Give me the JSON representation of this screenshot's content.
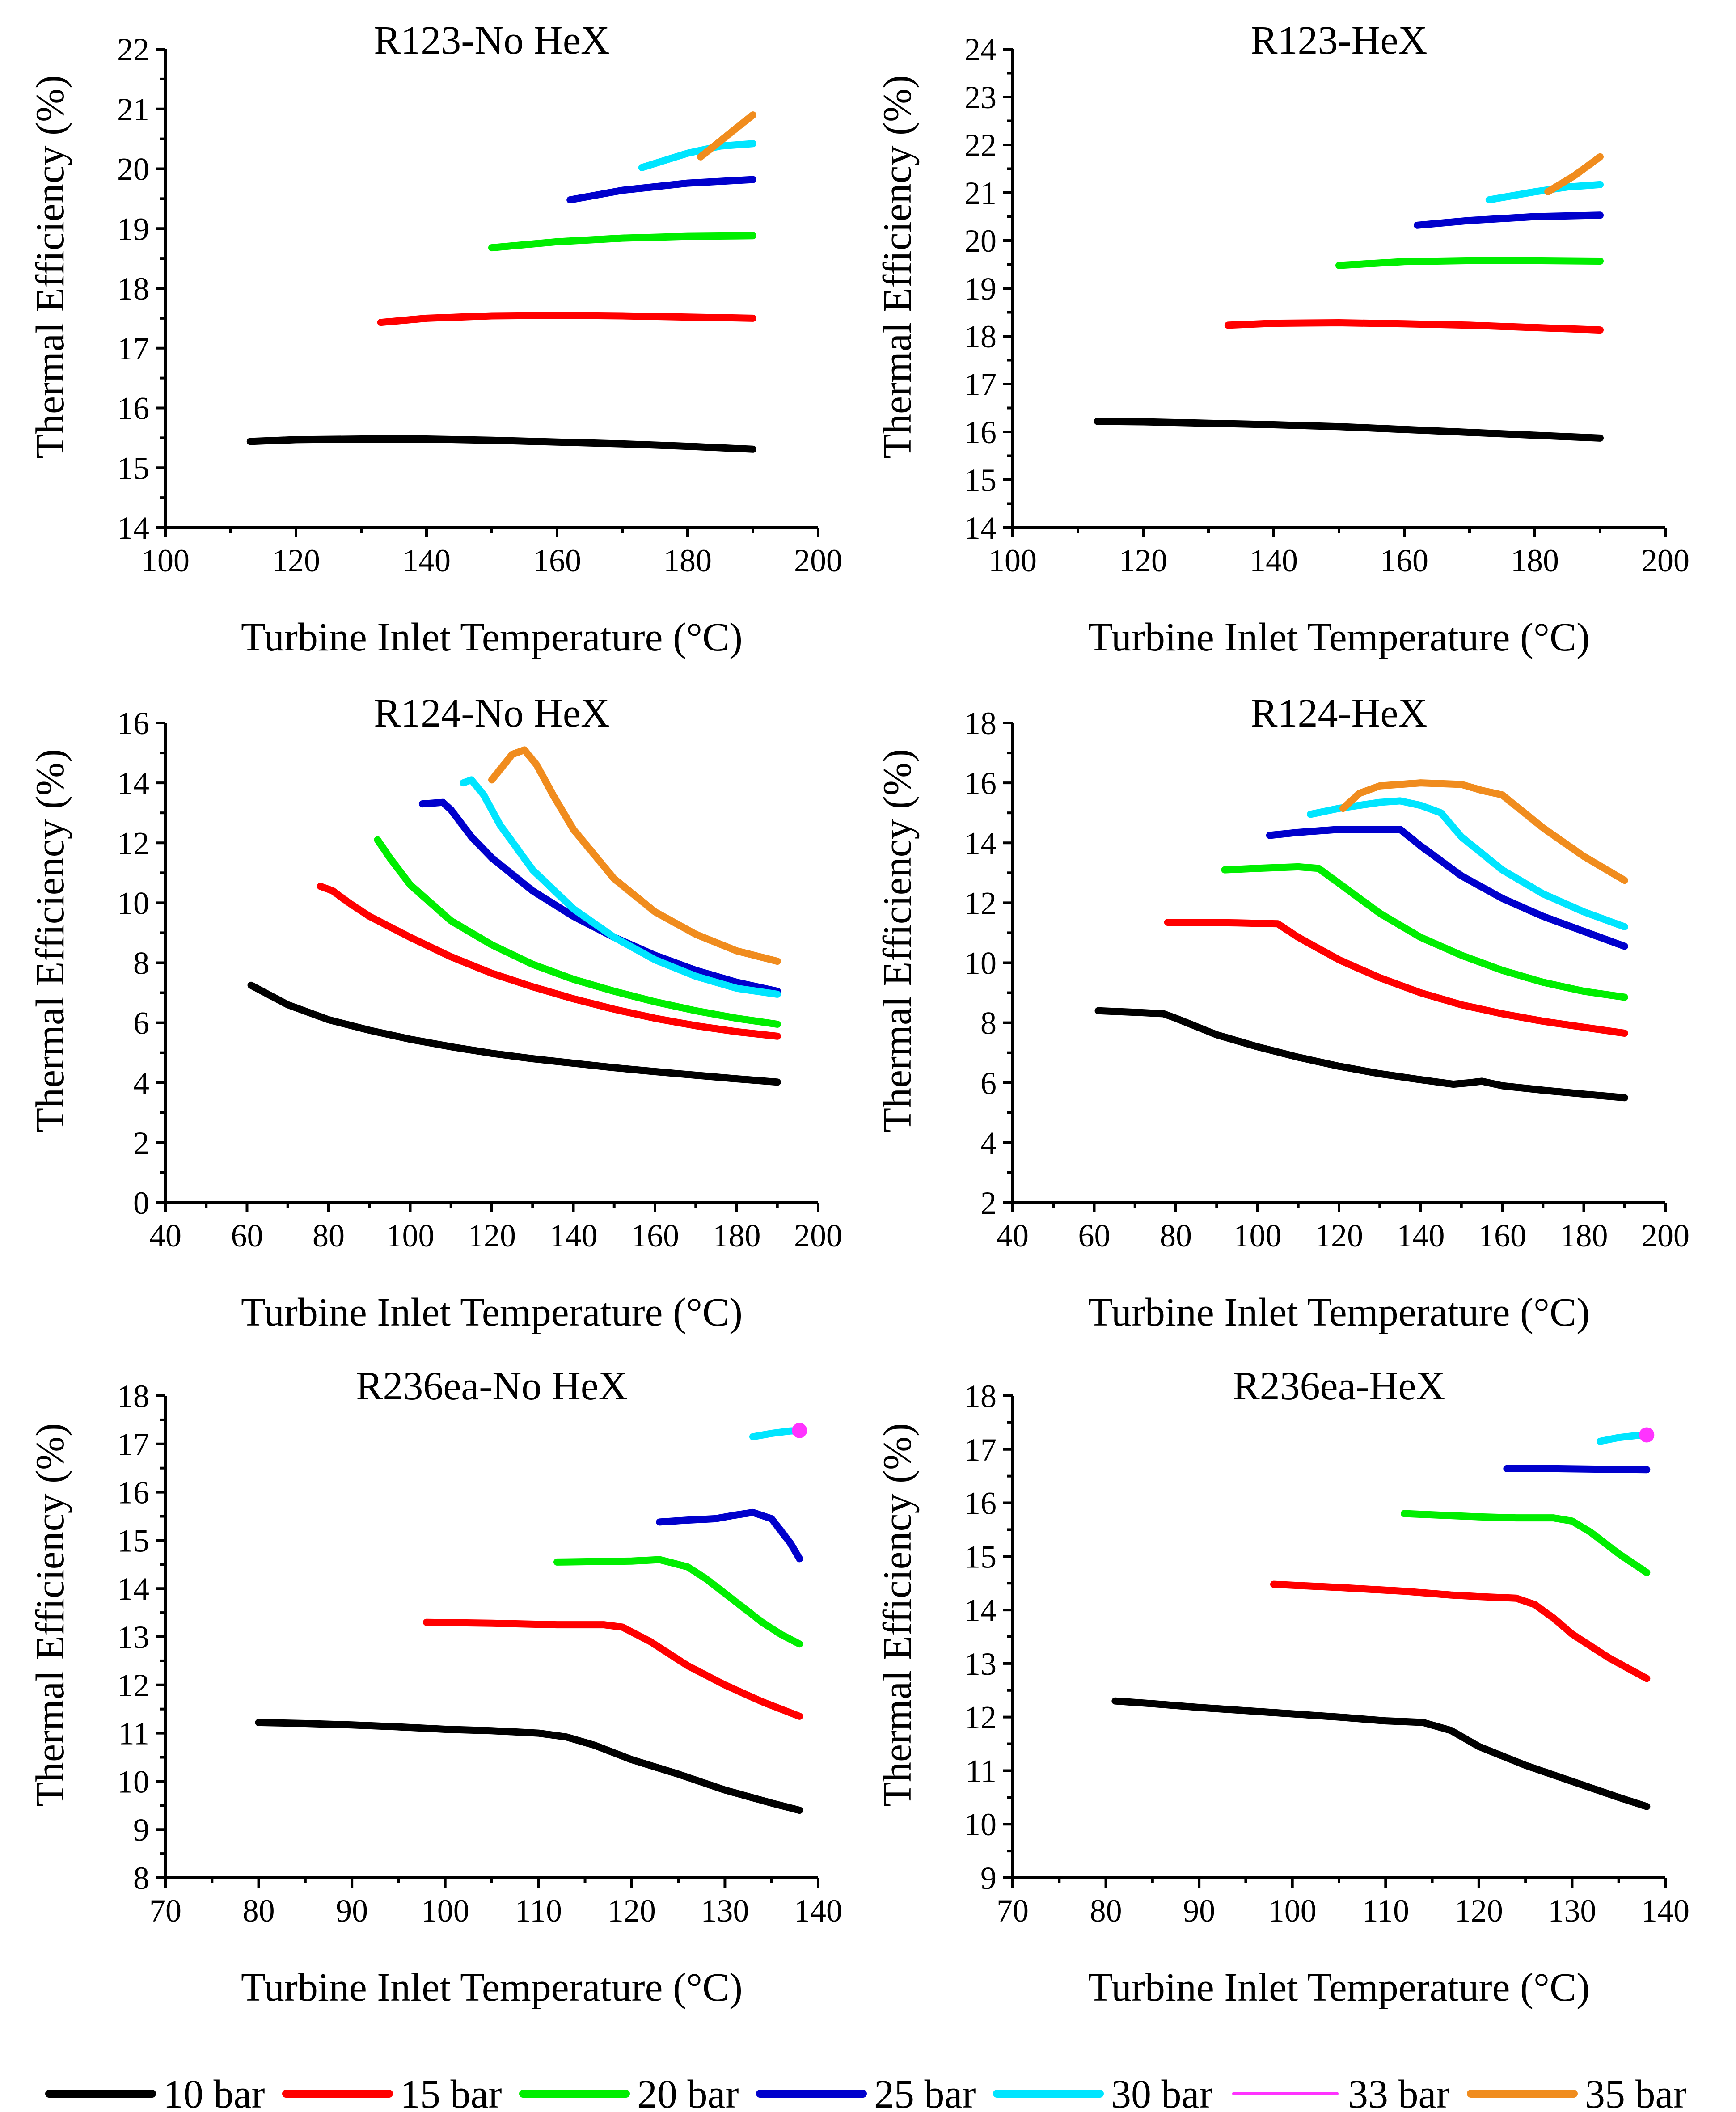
{
  "colors": {
    "10 bar": "#000000",
    "15 bar": "#ff0000",
    "20 bar": "#00ee00",
    "25 bar": "#0000cc",
    "30 bar": "#00e5ff",
    "33 bar": "#ff33ff",
    "35 bar": "#f08c1e"
  },
  "legend": {
    "items": [
      {
        "label": "10 bar",
        "color": "#000000"
      },
      {
        "label": "15 bar",
        "color": "#ff0000"
      },
      {
        "label": "20 bar",
        "color": "#00ee00"
      },
      {
        "label": "25 bar",
        "color": "#0000cc"
      },
      {
        "label": "30 bar",
        "color": "#00e5ff"
      },
      {
        "label": "33 bar",
        "color": "#ff33ff"
      },
      {
        "label": "35 bar",
        "color": "#f08c1e"
      }
    ]
  },
  "chart_data": [
    {
      "type": "line",
      "title": "R123-No HeX",
      "xlabel": "Turbine Inlet Temperature (°C)",
      "ylabel": "Thermal Efficiency (%)",
      "xlim": [
        100,
        200
      ],
      "ylim": [
        14,
        22
      ],
      "xticks": [
        100,
        120,
        140,
        160,
        180,
        200
      ],
      "yticks": [
        14,
        15,
        16,
        17,
        18,
        19,
        20,
        21,
        22
      ],
      "series": [
        {
          "name": "10 bar",
          "x": [
            113,
            120,
            130,
            140,
            150,
            160,
            170,
            180,
            190
          ],
          "y": [
            15.44,
            15.47,
            15.48,
            15.48,
            15.46,
            15.43,
            15.4,
            15.36,
            15.31
          ]
        },
        {
          "name": "15 bar",
          "x": [
            133,
            140,
            150,
            160,
            170,
            180,
            190
          ],
          "y": [
            17.43,
            17.5,
            17.54,
            17.55,
            17.54,
            17.52,
            17.5
          ]
        },
        {
          "name": "20 bar",
          "x": [
            150,
            160,
            170,
            180,
            190
          ],
          "y": [
            18.68,
            18.78,
            18.84,
            18.87,
            18.88
          ]
        },
        {
          "name": "25 bar",
          "x": [
            162,
            170,
            180,
            190
          ],
          "y": [
            19.48,
            19.64,
            19.76,
            19.82
          ]
        },
        {
          "name": "30 bar",
          "x": [
            173,
            180,
            185,
            190
          ],
          "y": [
            20.02,
            20.26,
            20.38,
            20.42
          ]
        },
        {
          "name": "35 bar",
          "x": [
            182,
            186,
            190
          ],
          "y": [
            20.2,
            20.55,
            20.9
          ]
        }
      ]
    },
    {
      "type": "line",
      "title": "R123-HeX",
      "xlabel": "Turbine Inlet Temperature (°C)",
      "ylabel": "Thermal Efficiency (%)",
      "xlim": [
        100,
        200
      ],
      "ylim": [
        14,
        24
      ],
      "xticks": [
        100,
        120,
        140,
        160,
        180,
        200
      ],
      "yticks": [
        14,
        15,
        16,
        17,
        18,
        19,
        20,
        21,
        22,
        23,
        24
      ],
      "series": [
        {
          "name": "10 bar",
          "x": [
            113,
            120,
            130,
            140,
            150,
            160,
            170,
            180,
            190
          ],
          "y": [
            16.22,
            16.21,
            16.18,
            16.15,
            16.11,
            16.05,
            15.99,
            15.93,
            15.87
          ]
        },
        {
          "name": "15 bar",
          "x": [
            133,
            140,
            150,
            160,
            170,
            180,
            190
          ],
          "y": [
            18.23,
            18.27,
            18.28,
            18.26,
            18.23,
            18.18,
            18.13
          ]
        },
        {
          "name": "20 bar",
          "x": [
            150,
            160,
            170,
            180,
            190
          ],
          "y": [
            19.48,
            19.56,
            19.58,
            19.58,
            19.57
          ]
        },
        {
          "name": "25 bar",
          "x": [
            162,
            170,
            180,
            190
          ],
          "y": [
            20.32,
            20.42,
            20.5,
            20.53
          ]
        },
        {
          "name": "30 bar",
          "x": [
            173,
            180,
            185,
            190
          ],
          "y": [
            20.85,
            21.02,
            21.12,
            21.17
          ]
        },
        {
          "name": "35 bar",
          "x": [
            182,
            186,
            190
          ],
          "y": [
            21.02,
            21.35,
            21.75
          ]
        }
      ]
    },
    {
      "type": "line",
      "title": "R124-No HeX",
      "xlabel": "Turbine Inlet Temperature (°C)",
      "ylabel": "Thermal Efficiency (%)",
      "xlim": [
        40,
        200
      ],
      "ylim": [
        0,
        16
      ],
      "xticks": [
        40,
        60,
        80,
        100,
        120,
        140,
        160,
        180,
        200
      ],
      "yticks": [
        0,
        2,
        4,
        6,
        8,
        10,
        12,
        14,
        16
      ],
      "series": [
        {
          "name": "10 bar",
          "x": [
            61,
            70,
            80,
            90,
            100,
            110,
            120,
            130,
            140,
            150,
            160,
            170,
            180,
            190
          ],
          "y": [
            7.25,
            6.6,
            6.1,
            5.75,
            5.45,
            5.2,
            4.98,
            4.8,
            4.65,
            4.5,
            4.37,
            4.25,
            4.13,
            4.02
          ]
        },
        {
          "name": "15 bar",
          "x": [
            78,
            81,
            85,
            90,
            100,
            110,
            120,
            130,
            140,
            150,
            160,
            170,
            180,
            190
          ],
          "y": [
            10.55,
            10.4,
            10.0,
            9.55,
            8.85,
            8.2,
            7.65,
            7.2,
            6.8,
            6.45,
            6.15,
            5.9,
            5.7,
            5.55
          ]
        },
        {
          "name": "20 bar",
          "x": [
            92,
            95,
            100,
            110,
            120,
            130,
            140,
            150,
            160,
            170,
            180,
            190
          ],
          "y": [
            12.1,
            11.5,
            10.6,
            9.4,
            8.6,
            7.95,
            7.45,
            7.05,
            6.7,
            6.4,
            6.15,
            5.95
          ]
        },
        {
          "name": "25 bar",
          "x": [
            103,
            108,
            110,
            115,
            120,
            130,
            140,
            150,
            160,
            170,
            180,
            190
          ],
          "y": [
            13.3,
            13.35,
            13.1,
            12.2,
            11.5,
            10.4,
            9.55,
            8.85,
            8.25,
            7.75,
            7.35,
            7.05
          ]
        },
        {
          "name": "30 bar",
          "x": [
            113,
            115,
            118,
            122,
            130,
            140,
            150,
            160,
            170,
            180,
            190
          ],
          "y": [
            14.0,
            14.1,
            13.6,
            12.6,
            11.1,
            9.8,
            8.85,
            8.1,
            7.55,
            7.15,
            6.95
          ]
        },
        {
          "name": "35 bar",
          "x": [
            120,
            125,
            128,
            131,
            135,
            140,
            150,
            160,
            170,
            180,
            190
          ],
          "y": [
            14.1,
            14.95,
            15.1,
            14.6,
            13.6,
            12.45,
            10.8,
            9.7,
            8.95,
            8.4,
            8.05
          ]
        }
      ]
    },
    {
      "type": "line",
      "title": "R124-HeX",
      "xlabel": "Turbine Inlet Temperature (°C)",
      "ylabel": "Thermal Efficiency (%)",
      "xlim": [
        40,
        200
      ],
      "ylim": [
        2,
        18
      ],
      "xticks": [
        40,
        60,
        80,
        100,
        120,
        140,
        160,
        180,
        200
      ],
      "yticks": [
        2,
        4,
        6,
        8,
        10,
        12,
        14,
        16,
        18
      ],
      "series": [
        {
          "name": "10 bar",
          "x": [
            61,
            70,
            77,
            80,
            90,
            100,
            110,
            120,
            130,
            140,
            148,
            152,
            155,
            160,
            170,
            180,
            190
          ],
          "y": [
            8.4,
            8.35,
            8.3,
            8.15,
            7.6,
            7.2,
            6.85,
            6.55,
            6.3,
            6.1,
            5.95,
            6.0,
            6.05,
            5.9,
            5.75,
            5.62,
            5.5
          ]
        },
        {
          "name": "15 bar",
          "x": [
            78,
            85,
            95,
            105,
            110,
            120,
            130,
            140,
            150,
            160,
            170,
            180,
            190
          ],
          "y": [
            11.35,
            11.35,
            11.33,
            11.3,
            10.85,
            10.1,
            9.5,
            9.0,
            8.6,
            8.3,
            8.05,
            7.85,
            7.65
          ]
        },
        {
          "name": "20 bar",
          "x": [
            92,
            100,
            110,
            115,
            120,
            130,
            140,
            150,
            160,
            170,
            180,
            190
          ],
          "y": [
            13.1,
            13.15,
            13.2,
            13.15,
            12.65,
            11.65,
            10.85,
            10.25,
            9.75,
            9.35,
            9.05,
            8.85
          ]
        },
        {
          "name": "25 bar",
          "x": [
            103,
            110,
            120,
            130,
            135,
            140,
            150,
            160,
            170,
            180,
            190
          ],
          "y": [
            14.25,
            14.35,
            14.45,
            14.45,
            14.45,
            13.9,
            12.9,
            12.15,
            11.55,
            11.05,
            10.55
          ]
        },
        {
          "name": "30 bar",
          "x": [
            113,
            120,
            130,
            135,
            140,
            145,
            150,
            160,
            170,
            180,
            190
          ],
          "y": [
            14.95,
            15.15,
            15.35,
            15.4,
            15.25,
            15.0,
            14.2,
            13.1,
            12.3,
            11.7,
            11.2
          ]
        },
        {
          "name": "35 bar",
          "x": [
            121,
            125,
            130,
            140,
            150,
            155,
            160,
            170,
            180,
            190
          ],
          "y": [
            15.15,
            15.65,
            15.9,
            16.0,
            15.95,
            15.75,
            15.6,
            14.5,
            13.55,
            12.75
          ]
        }
      ]
    },
    {
      "type": "line",
      "title": "R236ea-No HeX",
      "xlabel": "Turbine Inlet Temperature (°C)",
      "ylabel": "Thermal Efficiency (%)",
      "xlim": [
        70,
        140
      ],
      "ylim": [
        8,
        18
      ],
      "xticks": [
        70,
        80,
        90,
        100,
        110,
        120,
        130,
        140
      ],
      "yticks": [
        8,
        9,
        10,
        11,
        12,
        13,
        14,
        15,
        16,
        17,
        18
      ],
      "series": [
        {
          "name": "10 bar",
          "x": [
            80,
            85,
            90,
            95,
            100,
            105,
            110,
            113,
            116,
            120,
            125,
            130,
            135,
            138
          ],
          "y": [
            11.22,
            11.2,
            11.17,
            11.13,
            11.08,
            11.05,
            11.0,
            10.92,
            10.75,
            10.45,
            10.15,
            9.82,
            9.55,
            9.4
          ]
        },
        {
          "name": "15 bar",
          "x": [
            98,
            105,
            112,
            117,
            119,
            122,
            126,
            130,
            134,
            138
          ],
          "y": [
            13.3,
            13.28,
            13.25,
            13.25,
            13.2,
            12.9,
            12.4,
            12.0,
            11.65,
            11.35
          ]
        },
        {
          "name": "20 bar",
          "x": [
            112,
            116,
            120,
            123,
            126,
            128,
            131,
            134,
            136,
            138
          ],
          "y": [
            14.55,
            14.56,
            14.57,
            14.6,
            14.45,
            14.2,
            13.75,
            13.3,
            13.05,
            12.85
          ]
        },
        {
          "name": "25 bar",
          "x": [
            123,
            126,
            129,
            131,
            133,
            135,
            137,
            138
          ],
          "y": [
            15.38,
            15.42,
            15.45,
            15.52,
            15.58,
            15.45,
            14.95,
            14.62
          ]
        },
        {
          "name": "30 bar",
          "x": [
            133,
            135,
            137,
            138
          ],
          "y": [
            17.15,
            17.22,
            17.27,
            17.28
          ]
        },
        {
          "name": "33 bar",
          "x": [
            138
          ],
          "y": [
            17.28
          ]
        }
      ]
    },
    {
      "type": "line",
      "title": "R236ea-HeX",
      "xlabel": "Turbine Inlet Temperature (°C)",
      "ylabel": "Thermal Efficiency (%)",
      "xlim": [
        70,
        140
      ],
      "ylim": [
        9,
        18
      ],
      "xticks": [
        70,
        80,
        90,
        100,
        110,
        120,
        130,
        140
      ],
      "yticks": [
        9,
        10,
        11,
        12,
        13,
        14,
        15,
        16,
        17,
        18
      ],
      "series": [
        {
          "name": "10 bar",
          "x": [
            81,
            85,
            90,
            95,
            100,
            105,
            110,
            114,
            117,
            120,
            125,
            130,
            135,
            138
          ],
          "y": [
            12.3,
            12.25,
            12.18,
            12.12,
            12.06,
            12.0,
            11.93,
            11.9,
            11.75,
            11.45,
            11.1,
            10.8,
            10.5,
            10.33
          ]
        },
        {
          "name": "15 bar",
          "x": [
            98,
            105,
            112,
            117,
            120,
            124,
            126,
            128,
            130,
            134,
            138
          ],
          "y": [
            14.48,
            14.42,
            14.35,
            14.28,
            14.25,
            14.22,
            14.1,
            13.85,
            13.55,
            13.1,
            12.72
          ]
        },
        {
          "name": "20 bar",
          "x": [
            112,
            116,
            120,
            124,
            128,
            130,
            132,
            135,
            138
          ],
          "y": [
            15.8,
            15.77,
            15.74,
            15.72,
            15.72,
            15.66,
            15.45,
            15.05,
            14.7
          ]
        },
        {
          "name": "25 bar",
          "x": [
            123,
            128,
            133,
            138
          ],
          "y": [
            16.64,
            16.64,
            16.63,
            16.62
          ]
        },
        {
          "name": "30 bar",
          "x": [
            133,
            135,
            137,
            138
          ],
          "y": [
            17.15,
            17.22,
            17.26,
            17.27
          ]
        },
        {
          "name": "33 bar",
          "x": [
            138
          ],
          "y": [
            17.27
          ]
        }
      ]
    }
  ]
}
